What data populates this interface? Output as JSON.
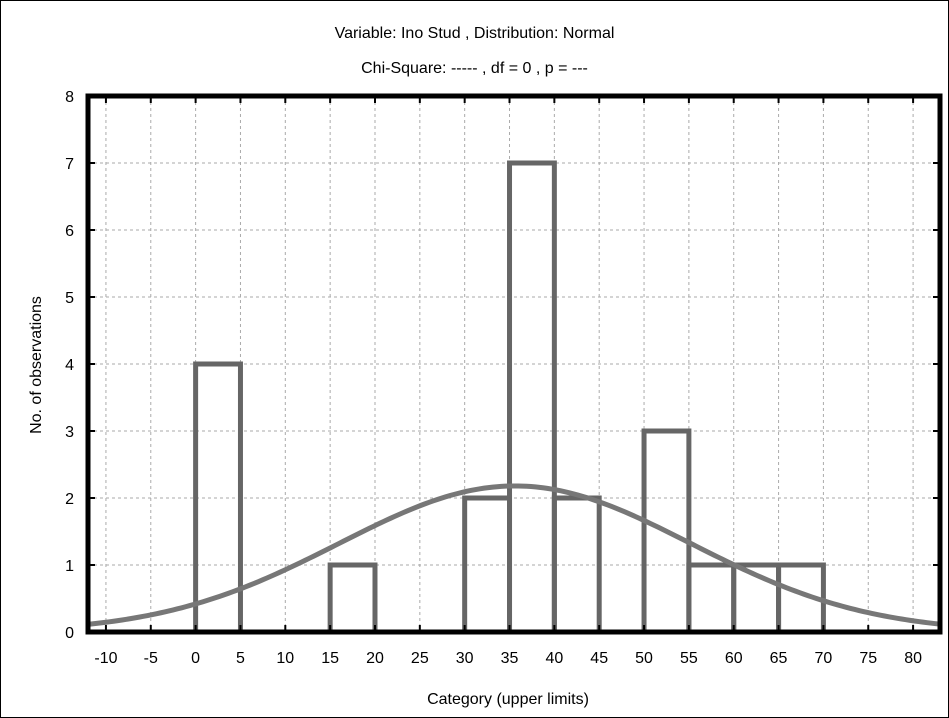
{
  "chart_data": {
    "type": "bar",
    "title": "Variable:  Ino Stud , Distribution: Normal",
    "subtitle": "Chi-Square:  -----  , df =  0 , p = ---",
    "xlabel": "Category (upper limits)",
    "ylabel": "No. of observations",
    "xlim": [
      -12,
      83
    ],
    "ylim": [
      0,
      8
    ],
    "x_ticks": [
      "-10",
      "-5",
      "0",
      "5",
      "10",
      "15",
      "20",
      "25",
      "30",
      "35",
      "40",
      "45",
      "50",
      "55",
      "60",
      "65",
      "70",
      "75",
      "80"
    ],
    "y_ticks": [
      "0",
      "1",
      "2",
      "3",
      "4",
      "5",
      "6",
      "7",
      "8"
    ],
    "bins": [
      {
        "lower": 0,
        "upper": 5,
        "count": 4
      },
      {
        "lower": 15,
        "upper": 20,
        "count": 1
      },
      {
        "lower": 30,
        "upper": 35,
        "count": 2
      },
      {
        "lower": 35,
        "upper": 40,
        "count": 7
      },
      {
        "lower": 40,
        "upper": 45,
        "count": 2
      },
      {
        "lower": 50,
        "upper": 55,
        "count": 3
      },
      {
        "lower": 55,
        "upper": 60,
        "count": 1
      },
      {
        "lower": 60,
        "upper": 65,
        "count": 1
      },
      {
        "lower": 65,
        "upper": 70,
        "count": 1
      }
    ],
    "normal_curve": {
      "mean": 35.6,
      "sd": 19.6,
      "peak": 2.18
    },
    "grid": true,
    "colors": {
      "bars": "#666666",
      "curve": "#777777",
      "grid": "#aaaaaa",
      "frame": "#000000"
    }
  }
}
